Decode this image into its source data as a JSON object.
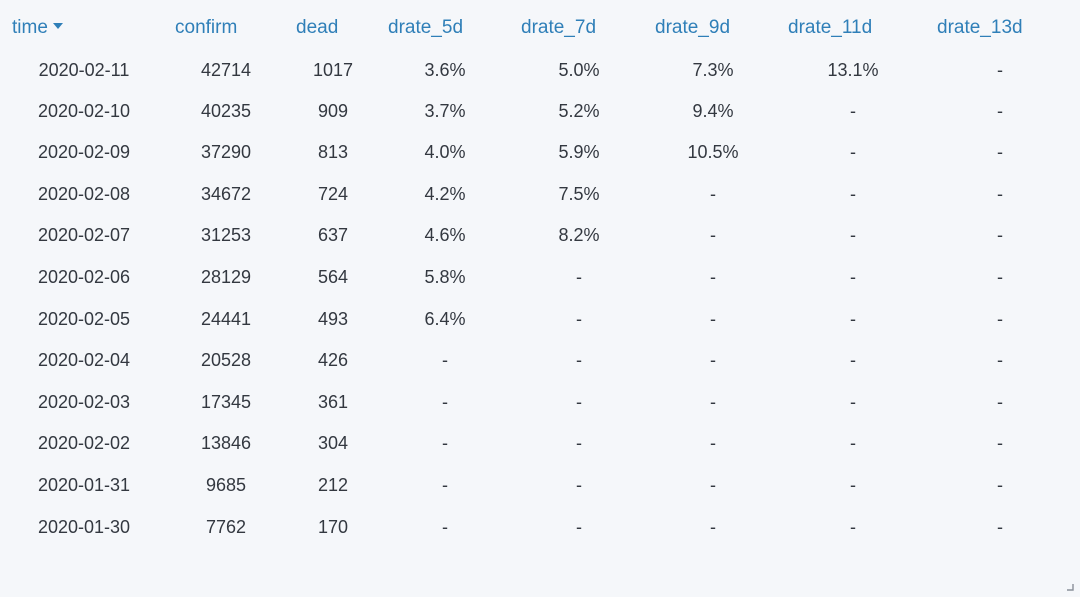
{
  "table": {
    "columns": [
      {
        "key": "time",
        "label": "time",
        "sorted": "desc"
      },
      {
        "key": "confirm",
        "label": "confirm"
      },
      {
        "key": "dead",
        "label": "dead"
      },
      {
        "key": "drate_5d",
        "label": "drate_5d"
      },
      {
        "key": "drate_7d",
        "label": "drate_7d"
      },
      {
        "key": "drate_9d",
        "label": "drate_9d"
      },
      {
        "key": "drate_11d",
        "label": "drate_11d"
      },
      {
        "key": "drate_13d",
        "label": "drate_13d"
      }
    ],
    "rows": [
      [
        "2020-02-11",
        "42714",
        "1017",
        "3.6%",
        "5.0%",
        "7.3%",
        "13.1%",
        "-"
      ],
      [
        "2020-02-10",
        "40235",
        "909",
        "3.7%",
        "5.2%",
        "9.4%",
        "-",
        "-"
      ],
      [
        "2020-02-09",
        "37290",
        "813",
        "4.0%",
        "5.9%",
        "10.5%",
        "-",
        "-"
      ],
      [
        "2020-02-08",
        "34672",
        "724",
        "4.2%",
        "7.5%",
        "-",
        "-",
        "-"
      ],
      [
        "2020-02-07",
        "31253",
        "637",
        "4.6%",
        "8.2%",
        "-",
        "-",
        "-"
      ],
      [
        "2020-02-06",
        "28129",
        "564",
        "5.8%",
        "-",
        "-",
        "-",
        "-"
      ],
      [
        "2020-02-05",
        "24441",
        "493",
        "6.4%",
        "-",
        "-",
        "-",
        "-"
      ],
      [
        "2020-02-04",
        "20528",
        "426",
        "-",
        "-",
        "-",
        "-",
        "-"
      ],
      [
        "2020-02-03",
        "17345",
        "361",
        "-",
        "-",
        "-",
        "-",
        "-"
      ],
      [
        "2020-02-02",
        "13846",
        "304",
        "-",
        "-",
        "-",
        "-",
        "-"
      ],
      [
        "2020-01-31",
        "9685",
        "212",
        "-",
        "-",
        "-",
        "-",
        "-"
      ],
      [
        "2020-01-30",
        "7762",
        "170",
        "-",
        "-",
        "-",
        "-",
        "-"
      ]
    ]
  },
  "colors": {
    "header_text": "#2f7fb8",
    "cell_text": "#333840",
    "background": "#f5f7fa"
  },
  "icons": {
    "sort": "caret-down-icon",
    "resize": "resize-handle-icon"
  }
}
